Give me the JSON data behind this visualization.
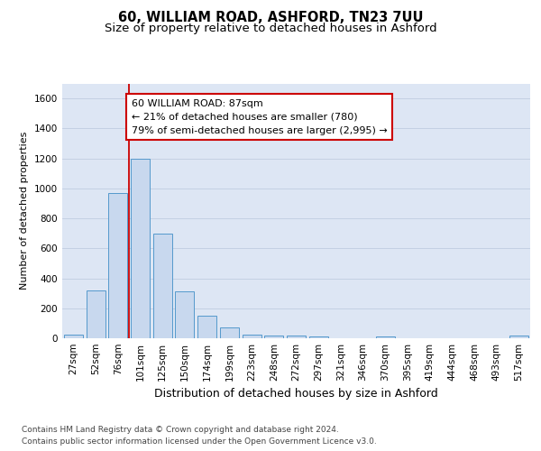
{
  "title1": "60, WILLIAM ROAD, ASHFORD, TN23 7UU",
  "title2": "Size of property relative to detached houses in Ashford",
  "xlabel": "Distribution of detached houses by size in Ashford",
  "ylabel": "Number of detached properties",
  "categories": [
    "27sqm",
    "52sqm",
    "76sqm",
    "101sqm",
    "125sqm",
    "150sqm",
    "174sqm",
    "199sqm",
    "223sqm",
    "248sqm",
    "272sqm",
    "297sqm",
    "321sqm",
    "346sqm",
    "370sqm",
    "395sqm",
    "419sqm",
    "444sqm",
    "468sqm",
    "493sqm",
    "517sqm"
  ],
  "values": [
    25,
    320,
    970,
    1200,
    700,
    310,
    150,
    75,
    25,
    18,
    18,
    12,
    0,
    0,
    12,
    0,
    0,
    0,
    0,
    0,
    18
  ],
  "bar_color": "#c8d8ee",
  "bar_edge_color": "#5599cc",
  "vline_x_index": 2.5,
  "vline_color": "#cc0000",
  "annotation_text": "60 WILLIAM ROAD: 87sqm\n← 21% of detached houses are smaller (780)\n79% of semi-detached houses are larger (2,995) →",
  "annotation_box_color": "white",
  "annotation_box_edge": "#cc0000",
  "ylim": [
    0,
    1700
  ],
  "yticks": [
    0,
    200,
    400,
    600,
    800,
    1000,
    1200,
    1400,
    1600
  ],
  "grid_color": "#c0cce0",
  "bg_color": "#dde6f4",
  "footer1": "Contains HM Land Registry data © Crown copyright and database right 2024.",
  "footer2": "Contains public sector information licensed under the Open Government Licence v3.0.",
  "title1_fontsize": 10.5,
  "title2_fontsize": 9.5,
  "xlabel_fontsize": 9,
  "ylabel_fontsize": 8,
  "tick_fontsize": 7.5,
  "annotation_fontsize": 8,
  "footer_fontsize": 6.5
}
